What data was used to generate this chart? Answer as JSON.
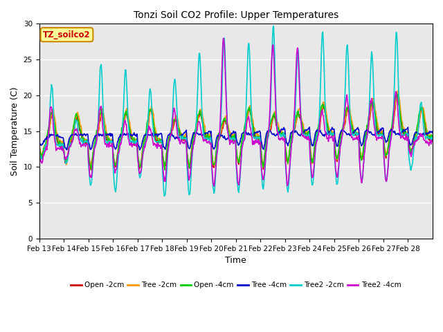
{
  "title": "Tonzi Soil CO2 Profile: Upper Temperatures",
  "xlabel": "Time",
  "ylabel": "Soil Temperature (C)",
  "ylim": [
    0,
    30
  ],
  "annotation": "TZ_soilco2",
  "annotation_color": "#cc0000",
  "annotation_bg": "#ffff99",
  "annotation_border": "#cc8800",
  "x_tick_labels": [
    "Feb 13",
    "Feb 14",
    "Feb 15",
    "Feb 16",
    "Feb 17",
    "Feb 18",
    "Feb 19",
    "Feb 20",
    "Feb 21",
    "Feb 22",
    "Feb 23",
    "Feb 24",
    "Feb 25",
    "Feb 26",
    "Feb 27",
    "Feb 28"
  ],
  "series": [
    {
      "label": "Open -2cm",
      "color": "#cc0000"
    },
    {
      "label": "Tree -2cm",
      "color": "#ff9900"
    },
    {
      "label": "Open -4cm",
      "color": "#00cc00"
    },
    {
      "label": "Tree -4cm",
      "color": "#0000cc"
    },
    {
      "label": "Tree2 -2cm",
      "color": "#00cccc"
    },
    {
      "label": "Tree2 -4cm",
      "color": "#cc00cc"
    }
  ],
  "bg_color": "#e8e8e8",
  "figsize": [
    6.4,
    4.8
  ],
  "dpi": 100
}
